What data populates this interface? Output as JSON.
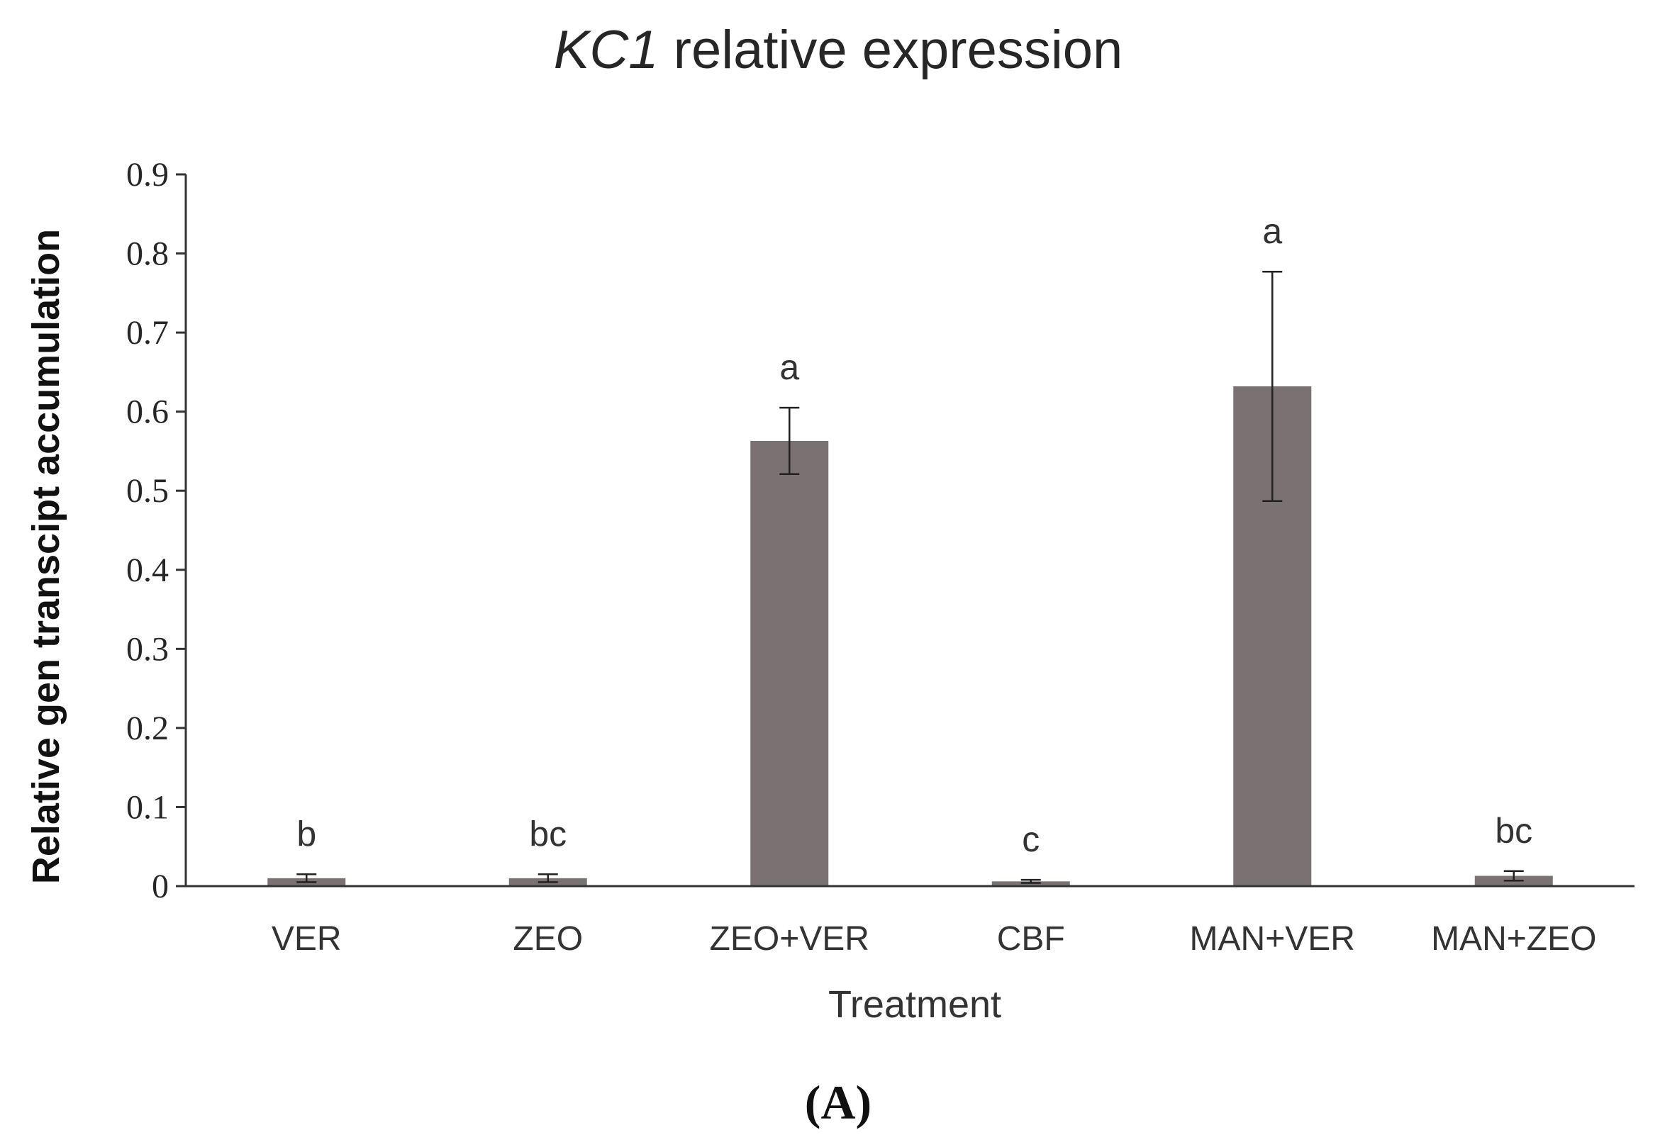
{
  "chart_data": {
    "type": "bar",
    "title_italic": "KC1",
    "title_rest": " relative expression",
    "xlabel": "Treatment",
    "ylabel": "Relative gen transcipt accumulation",
    "ylim": [
      0,
      0.9
    ],
    "yticks": [
      "0",
      "0.1",
      "0.2",
      "0.3",
      "0.4",
      "0.5",
      "0.6",
      "0.7",
      "0.8",
      "0.9"
    ],
    "categories": [
      "VER",
      "ZEO",
      "ZEO+VER",
      "CBF",
      "MAN+VER",
      "MAN+ZEO"
    ],
    "values": [
      0.01,
      0.01,
      0.563,
      0.006,
      0.632,
      0.013
    ],
    "error": [
      0.005,
      0.005,
      0.042,
      0.002,
      0.145,
      0.006
    ],
    "significance": [
      "b",
      "bc",
      "a",
      "c",
      "a",
      "bc"
    ],
    "bar_color": "#7a7272",
    "error_color": "#222222",
    "panel_label": "(A)"
  }
}
